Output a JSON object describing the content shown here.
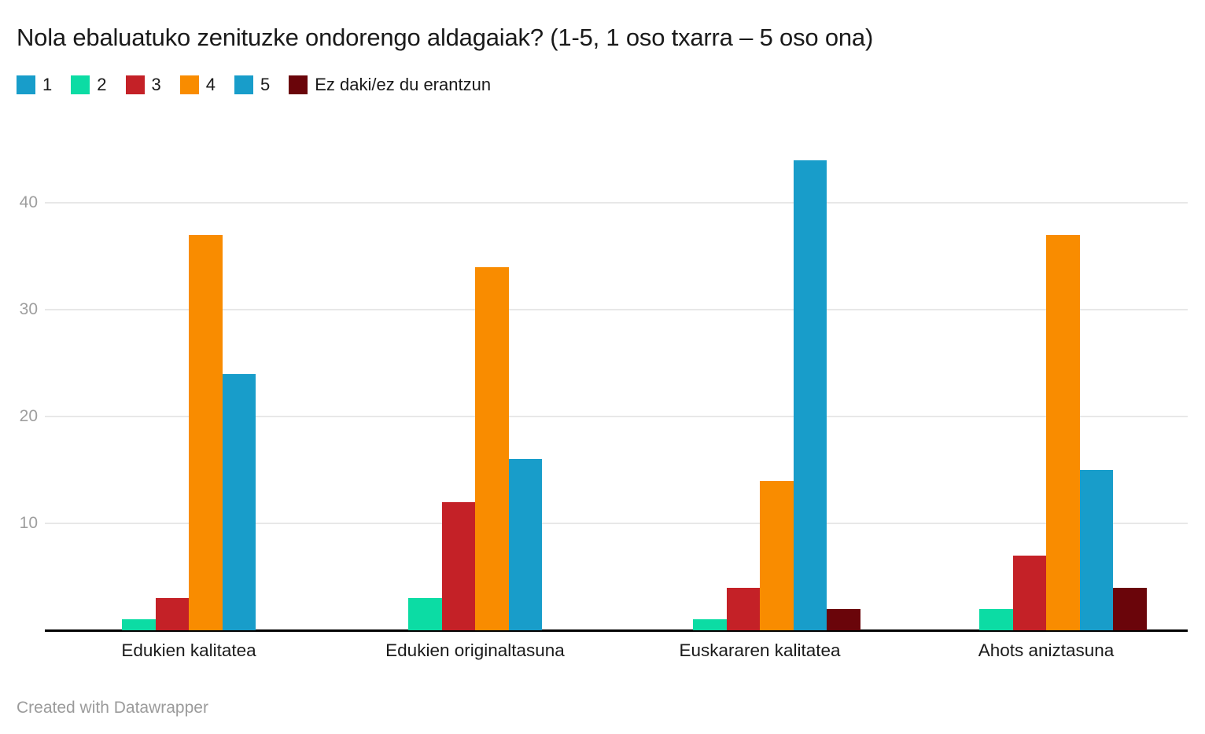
{
  "header": {
    "title": "Nola ebaluatuko zenituzke ondorengo aldagaiak? (1-5, 1 oso txarra – 5 oso ona)"
  },
  "footer": {
    "credit": "Created with Datawrapper"
  },
  "colors": {
    "grid": "#e8e8e8",
    "baseline": "#000000",
    "tick_text": "#9e9e9e",
    "title_text": "#1a1a1a",
    "credit_text": "#9b9b9b"
  },
  "chart_data": {
    "type": "bar",
    "title": "Nola ebaluatuko zenituzke ondorengo aldagaiak? (1-5, 1 oso txarra – 5 oso ona)",
    "xlabel": "",
    "ylabel": "",
    "grid": "horizontal",
    "legend_position": "top-left",
    "yticks": [
      10,
      20,
      30,
      40
    ],
    "ylim": [
      0,
      46
    ],
    "categories": [
      "Edukien kalitatea",
      "Edukien originaltasuna",
      "Euskararen kalitatea",
      "Ahots aniztasuna"
    ],
    "series": [
      {
        "name": "1",
        "color": "#189dca",
        "values": [
          0,
          0,
          0,
          0
        ]
      },
      {
        "name": "2",
        "color": "#0cdca4",
        "values": [
          1,
          3,
          1,
          2
        ]
      },
      {
        "name": "3",
        "color": "#c42127",
        "values": [
          3,
          12,
          4,
          7
        ]
      },
      {
        "name": "4",
        "color": "#f98c00",
        "values": [
          37,
          34,
          14,
          37
        ]
      },
      {
        "name": "5",
        "color": "#189dca",
        "values": [
          24,
          16,
          44,
          15
        ]
      },
      {
        "name": "Ez daki/ez du erantzun",
        "color": "#6a050a",
        "values": [
          0,
          0,
          2,
          4
        ]
      }
    ]
  }
}
